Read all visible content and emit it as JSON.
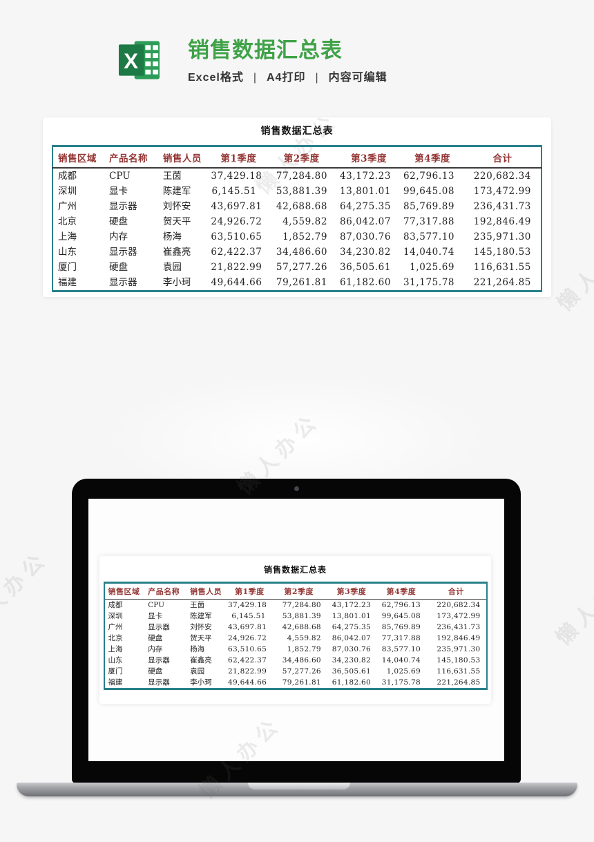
{
  "page": {
    "title": "销售数据汇总表",
    "features": [
      "Excel格式",
      "A4打印",
      "内容可编辑"
    ],
    "separator": "|",
    "watermark": "懒人办公"
  },
  "colors": {
    "accent-green": "#3fa247",
    "excel-panel-green": "#1e7a45",
    "excel-sheet-green": "#2c9c58",
    "table-border-teal": "#28808a",
    "header-red": "#943634",
    "subtitle-gray": "#333333"
  },
  "sheet": {
    "title": "销售数据汇总表",
    "columns": [
      "销售区域",
      "产品名称",
      "销售人员",
      "第1季度",
      "第2季度",
      "第3季度",
      "第4季度",
      "合计"
    ],
    "rows": [
      [
        "成都",
        "CPU",
        "王茵",
        "37,429.18",
        "77,284.80",
        "43,172.23",
        "62,796.13",
        "220,682.34"
      ],
      [
        "深圳",
        "显卡",
        "陈建军",
        "6,145.51",
        "53,881.39",
        "13,801.01",
        "99,645.08",
        "173,472.99"
      ],
      [
        "广州",
        "显示器",
        "刘怀安",
        "43,697.81",
        "42,688.68",
        "64,275.35",
        "85,769.89",
        "236,431.73"
      ],
      [
        "北京",
        "硬盘",
        "贺天平",
        "24,926.72",
        "4,559.82",
        "86,042.07",
        "77,317.88",
        "192,846.49"
      ],
      [
        "上海",
        "内存",
        "杨海",
        "63,510.65",
        "1,852.79",
        "87,030.76",
        "83,577.10",
        "235,971.30"
      ],
      [
        "山东",
        "显示器",
        "崔鑫亮",
        "62,422.37",
        "34,486.60",
        "34,230.82",
        "14,040.74",
        "145,180.53"
      ],
      [
        "厦门",
        "硬盘",
        "袁园",
        "21,822.99",
        "57,277.26",
        "36,505.61",
        "1,025.69",
        "116,631.55"
      ],
      [
        "福建",
        "显示器",
        "李小珂",
        "49,644.66",
        "79,261.81",
        "61,182.60",
        "31,175.78",
        "221,264.85"
      ]
    ]
  }
}
